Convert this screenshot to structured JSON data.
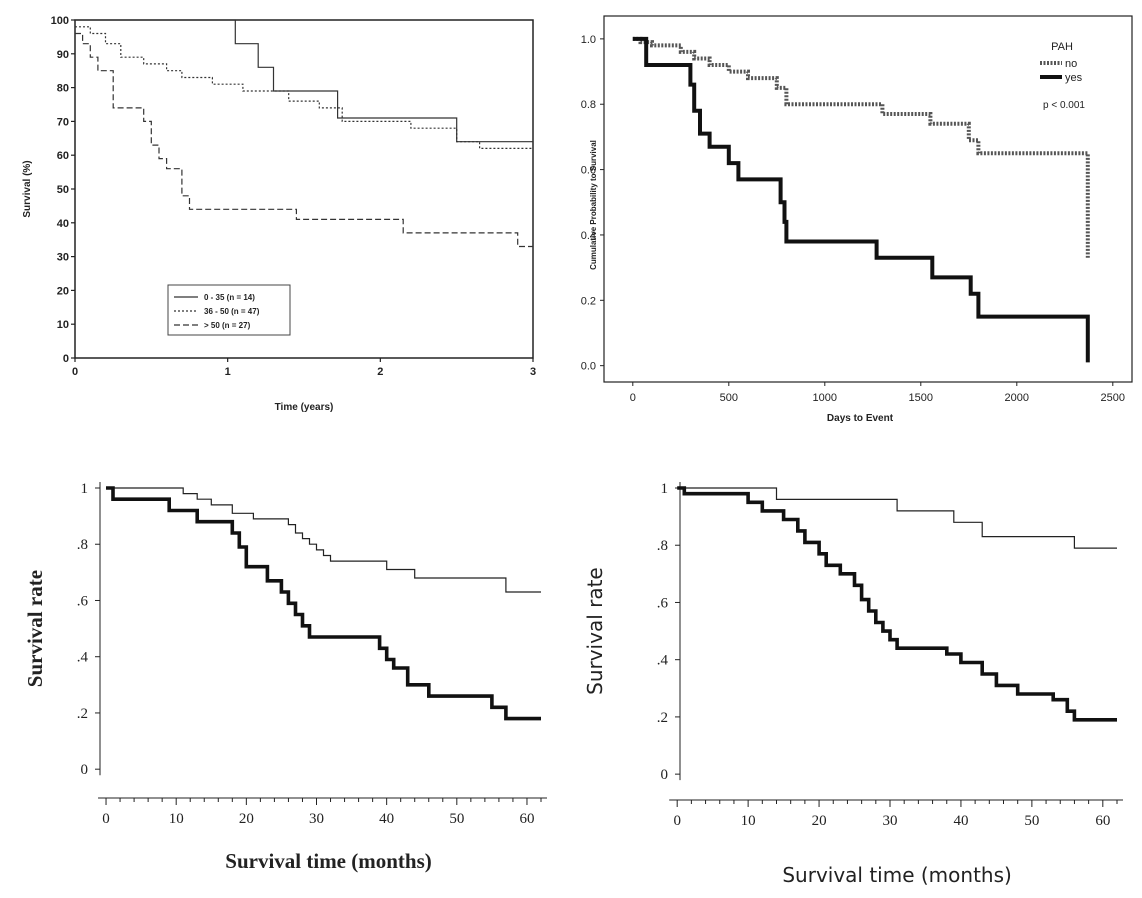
{
  "chart_data": [
    {
      "type": "line",
      "step": true,
      "xlabel": "Time (years)",
      "ylabel": "Survival (%)",
      "xlim": [
        0,
        3
      ],
      "ylim": [
        0,
        100
      ],
      "xticks": [
        "0",
        "1",
        "2",
        "3"
      ],
      "yticks": [
        "0",
        "10",
        "20",
        "30",
        "40",
        "50",
        "60",
        "70",
        "80",
        "90",
        "100"
      ],
      "series": [
        {
          "name": "0 - 35 (n = 14)",
          "style": "solid",
          "x": [
            0,
            1.05,
            1.05,
            1.2,
            1.2,
            1.3,
            1.3,
            1.72,
            1.72,
            2.5,
            2.5,
            3
          ],
          "y": [
            100,
            100,
            93,
            93,
            86,
            86,
            79,
            79,
            71,
            71,
            64,
            64
          ]
        },
        {
          "name": "36 - 50 (n = 47)",
          "style": "dotted",
          "x": [
            0,
            0.1,
            0.2,
            0.3,
            0.45,
            0.6,
            0.7,
            0.9,
            1.1,
            1.4,
            1.6,
            1.75,
            2.2,
            2.5,
            2.65,
            3
          ],
          "y": [
            98,
            96,
            93,
            89,
            87,
            85,
            83,
            81,
            79,
            76,
            74,
            70,
            68,
            64,
            62,
            62
          ]
        },
        {
          "name": "> 50 (n = 27)",
          "style": "dashed",
          "x": [
            0,
            0.05,
            0.1,
            0.15,
            0.25,
            0.45,
            0.5,
            0.55,
            0.6,
            0.7,
            0.75,
            1.45,
            2.15,
            2.9,
            3
          ],
          "y": [
            96,
            93,
            89,
            85,
            74,
            70,
            63,
            59,
            56,
            48,
            44,
            41,
            37,
            33,
            33
          ]
        }
      ],
      "legend": "bottom-left"
    },
    {
      "type": "line",
      "step": true,
      "xlabel": "Days to Event",
      "ylabel": "Cumulative Probability to Survival",
      "xlim": [
        -150,
        2600
      ],
      "ylim": [
        -0.05,
        1.07
      ],
      "xticks": [
        "0",
        "500",
        "1000",
        "1500",
        "2000",
        "2500"
      ],
      "yticks": [
        "0.0",
        "0.2",
        "0.4",
        "0.6",
        "0.8",
        "1.0"
      ],
      "legend_title": "PAH",
      "annotation": "p < 0.001",
      "series": [
        {
          "name": "no",
          "style": "dotted-thick",
          "x": [
            0,
            40,
            100,
            250,
            320,
            400,
            500,
            600,
            750,
            800,
            1300,
            1550,
            1750,
            1800,
            2370,
            2370
          ],
          "y": [
            1.0,
            0.99,
            0.98,
            0.96,
            0.94,
            0.92,
            0.9,
            0.88,
            0.85,
            0.8,
            0.77,
            0.74,
            0.69,
            0.65,
            0.65,
            0.33
          ]
        },
        {
          "name": "yes",
          "style": "solid-thick",
          "x": [
            0,
            70,
            300,
            320,
            350,
            400,
            500,
            550,
            770,
            790,
            800,
            1270,
            1560,
            1760,
            1800,
            2370,
            2370
          ],
          "y": [
            1.0,
            0.92,
            0.86,
            0.78,
            0.71,
            0.67,
            0.62,
            0.57,
            0.5,
            0.44,
            0.38,
            0.33,
            0.27,
            0.22,
            0.15,
            0.15,
            0.01
          ]
        }
      ],
      "legend": "top-right"
    },
    {
      "type": "line",
      "step": true,
      "xlabel": "Survival time (months)",
      "ylabel": "Survival rate",
      "xlim": [
        -2,
        62
      ],
      "ylim": [
        -0.01,
        1.0
      ],
      "xticks": [
        "0",
        "10",
        "20",
        "30",
        "40",
        "50",
        "60"
      ],
      "yticks": [
        "0",
        ".2",
        ".4",
        ".6",
        ".8",
        "1"
      ],
      "series": [
        {
          "style": "thin",
          "x": [
            0,
            11,
            13,
            15,
            18,
            21,
            26,
            27,
            28,
            29,
            30,
            31,
            32,
            40,
            44,
            57,
            62
          ],
          "y": [
            1.0,
            0.98,
            0.96,
            0.94,
            0.91,
            0.89,
            0.87,
            0.84,
            0.82,
            0.8,
            0.78,
            0.76,
            0.74,
            0.71,
            0.68,
            0.63,
            0.63
          ]
        },
        {
          "style": "thick",
          "x": [
            0,
            1,
            9,
            13,
            18,
            19,
            20,
            23,
            25,
            26,
            27,
            28,
            29,
            30,
            39,
            40,
            41,
            43,
            46,
            52,
            55,
            57,
            62
          ],
          "y": [
            1.0,
            0.96,
            0.92,
            0.88,
            0.84,
            0.79,
            0.72,
            0.67,
            0.63,
            0.59,
            0.55,
            0.51,
            0.47,
            0.47,
            0.43,
            0.39,
            0.36,
            0.3,
            0.26,
            0.26,
            0.22,
            0.18,
            0.18
          ]
        }
      ]
    },
    {
      "type": "line",
      "step": true,
      "xlabel": "Survival time (months)",
      "ylabel": "Survival rate",
      "xlim": [
        -2,
        62
      ],
      "ylim": [
        -0.01,
        1.0
      ],
      "xticks": [
        "0",
        "10",
        "20",
        "30",
        "40",
        "50",
        "60"
      ],
      "yticks": [
        "0",
        ".2",
        ".4",
        ".6",
        ".8",
        "1"
      ],
      "series": [
        {
          "style": "thin",
          "x": [
            0,
            14,
            31,
            39,
            43,
            56,
            62
          ],
          "y": [
            1.0,
            0.96,
            0.92,
            0.88,
            0.83,
            0.79,
            0.79
          ]
        },
        {
          "style": "thick",
          "x": [
            0,
            1,
            10,
            12,
            15,
            17,
            18,
            20,
            21,
            23,
            25,
            26,
            27,
            28,
            29,
            30,
            31,
            38,
            40,
            43,
            45,
            48,
            53,
            55,
            56,
            62
          ],
          "y": [
            1.0,
            0.98,
            0.95,
            0.92,
            0.89,
            0.85,
            0.81,
            0.77,
            0.73,
            0.7,
            0.66,
            0.61,
            0.57,
            0.53,
            0.5,
            0.47,
            0.44,
            0.42,
            0.39,
            0.35,
            0.31,
            0.28,
            0.26,
            0.22,
            0.19,
            0.19
          ]
        }
      ]
    }
  ]
}
